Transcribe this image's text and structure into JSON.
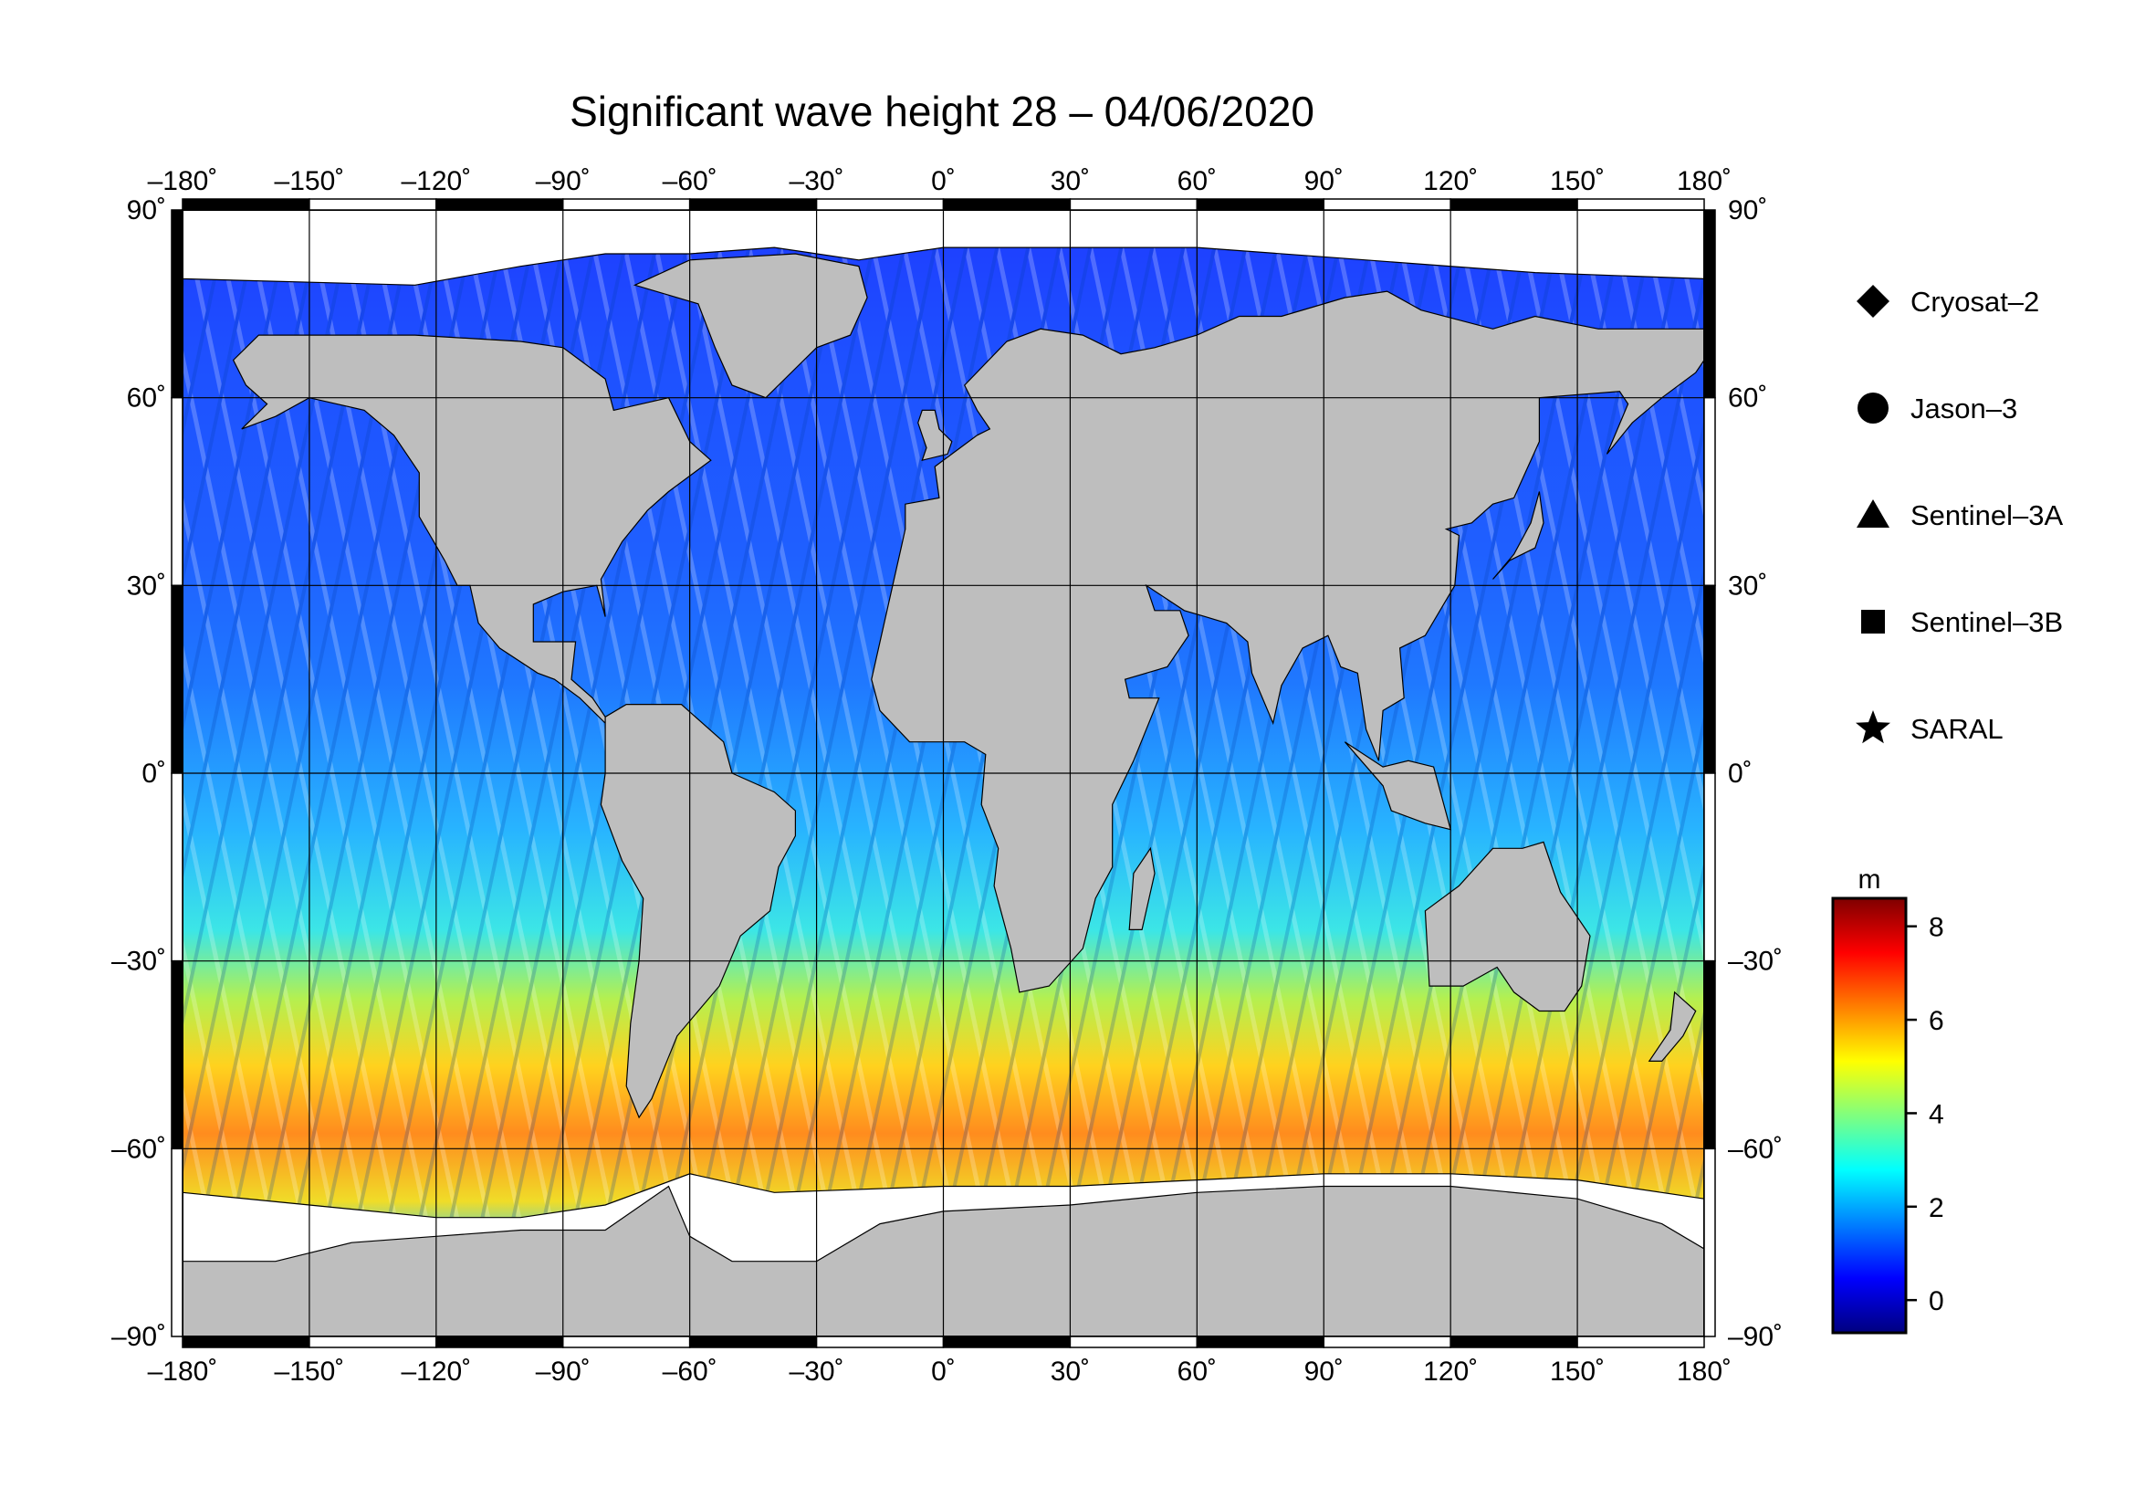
{
  "title": "Significant wave height 28 – 04/06/2020",
  "map": {
    "lon_range": [
      -180,
      180
    ],
    "lat_range": [
      -90,
      90
    ],
    "lon_ticks": [
      -180,
      -150,
      -120,
      -90,
      -60,
      -30,
      0,
      30,
      60,
      90,
      120,
      150,
      180
    ],
    "lat_ticks": [
      90,
      60,
      30,
      0,
      -30,
      -60,
      -90
    ],
    "lon_labels": [
      "–180˚",
      "–150˚",
      "–120˚",
      "–90˚",
      "–60˚",
      "–30˚",
      "0˚",
      "30˚",
      "60˚",
      "90˚",
      "120˚",
      "150˚",
      "180˚"
    ],
    "lat_labels": [
      "90˚",
      "60˚",
      "30˚",
      "0˚",
      "–30˚",
      "–60˚",
      "–90˚"
    ],
    "grid": true,
    "colors": {
      "land": "#bebebe",
      "ice": "#ffffff",
      "grid": "#000000",
      "frame": "#000000"
    }
  },
  "legend": {
    "placement": "right",
    "items": [
      {
        "label": "Cryosat–2",
        "symbol": "diamond-icon"
      },
      {
        "label": "Jason–3",
        "symbol": "circle-icon"
      },
      {
        "label": "Sentinel–3A",
        "symbol": "triangle-icon"
      },
      {
        "label": "Sentinel–3B",
        "symbol": "square-icon"
      },
      {
        "label": "SARAL",
        "symbol": "star-icon"
      }
    ]
  },
  "colorbar": {
    "unit": "m",
    "min": -0.7,
    "max": 8.6,
    "ticks": [
      8,
      6,
      4,
      2,
      0
    ],
    "tick_labels": [
      "8",
      "6",
      "4",
      "2",
      "0"
    ],
    "colors": [
      "#00007f",
      "#0000ff",
      "#007fff",
      "#00ffff",
      "#7fff7f",
      "#ffff00",
      "#ff7f00",
      "#ff0000",
      "#7f0000"
    ]
  }
}
